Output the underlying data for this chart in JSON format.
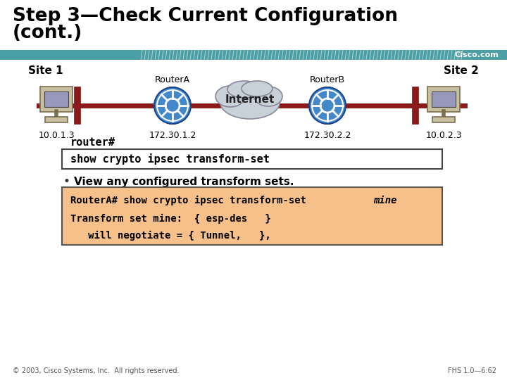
{
  "title_line1": "Step 3—Check Current Configuration",
  "title_line2": "(cont.)",
  "bg_color": "#ffffff",
  "header_bar_color": "#4a9fa5",
  "cisco_text": "Cisco.com",
  "site1_label": "Site 1",
  "site2_label": "Site 2",
  "routerA_label": "RouterA",
  "routerB_label": "RouterB",
  "internet_label": "Internet",
  "ip_site1": "10.0.1.3",
  "ip_routerA": "172.30.1.2",
  "ip_routerB": "172.30.2.2",
  "ip_site2": "10.0.2.3",
  "prompt_text": "router#",
  "command_text": "show crypto ipsec transform-set",
  "bullet_text": "View any configured transform sets.",
  "output_box_color": "#f5c08a",
  "output_line1_normal": "RouterA# show crypto ipsec transform-set ",
  "output_line1_italic": "mine",
  "output_line2": "Transform set mine:  { esp-des   }",
  "output_line3": "   will negotiate = { Tunnel,   },",
  "footer_left": "© 2003, Cisco Systems, Inc.  All rights reserved.",
  "footer_right": "FHS 1.0—6:62",
  "line_color": "#8b1a1a",
  "router_color": "#4488cc",
  "cloud_color": "#c8d0d8"
}
